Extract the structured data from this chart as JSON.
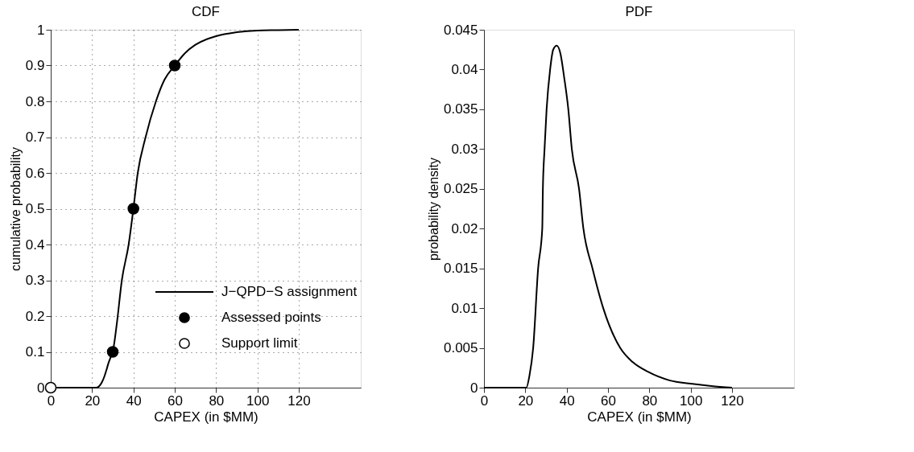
{
  "chart_data": [
    {
      "type": "line",
      "title": "CDF",
      "xlabel": "CAPEX (in $MM)",
      "ylabel": "cumulative probability",
      "xlim": [
        0,
        150
      ],
      "xticks": [
        0,
        20,
        40,
        60,
        80,
        100,
        120
      ],
      "ylim": [
        0,
        1
      ],
      "yticks": [
        0,
        0.1,
        0.2,
        0.3,
        0.4,
        0.5,
        0.6,
        0.7,
        0.8,
        0.9,
        1
      ],
      "grid": true,
      "legend": "bottom right",
      "series": [
        {
          "name": "J−QPD−S assignment",
          "color": "#000000",
          "line_style": "solid",
          "x": [
            0,
            20,
            22,
            23,
            24,
            25,
            26,
            27,
            28,
            29,
            30,
            32,
            34.4,
            37.7,
            40,
            42.1,
            45.9,
            50.9,
            55,
            60,
            65,
            70,
            80,
            90,
            100,
            110,
            120
          ],
          "values": [
            0,
            0,
            0,
            0.002,
            0.008,
            0.018,
            0.032,
            0.05,
            0.07,
            0.085,
            0.1,
            0.18,
            0.3,
            0.4,
            0.5,
            0.6,
            0.7,
            0.8,
            0.86,
            0.9,
            0.935,
            0.958,
            0.982,
            0.993,
            0.998,
            0.999,
            1
          ]
        },
        {
          "name": "Assessed points",
          "type": "scatter",
          "color": "#000000",
          "marker": "circle",
          "x": [
            30,
            40,
            60
          ],
          "values": [
            0.1,
            0.5,
            0.9
          ]
        },
        {
          "name": "Support limit",
          "type": "scatter",
          "color": "#ffffff",
          "marker": "circle",
          "x": [
            0
          ],
          "values": [
            0
          ]
        }
      ]
    },
    {
      "type": "line",
      "title": "PDF",
      "xlabel": "CAPEX (in $MM)",
      "ylabel": "probability density",
      "xlim": [
        0,
        150
      ],
      "xticks": [
        0,
        20,
        40,
        60,
        80,
        100,
        120
      ],
      "ylim": [
        0,
        0.045
      ],
      "yticks": [
        0,
        0.005,
        0.01,
        0.015,
        0.02,
        0.025,
        0.03,
        0.035,
        0.04,
        0.045
      ],
      "grid": false,
      "legend": false,
      "series": [
        {
          "color": "#000000",
          "line_style": "solid",
          "x": [
            0,
            20.5,
            22,
            23.8,
            26.2,
            28.2,
            28.5,
            29.3,
            30.3,
            32,
            33.5,
            35.2,
            37,
            38.8,
            40.8,
            42.5,
            46,
            48.1,
            52.5,
            57.7,
            65.9,
            72,
            79.3,
            90,
            100,
            110,
            120
          ],
          "values": [
            0,
            0,
            0.0015,
            0.005,
            0.015,
            0.02,
            0.025,
            0.03,
            0.035,
            0.04,
            0.0425,
            0.043,
            0.042,
            0.039,
            0.035,
            0.03,
            0.025,
            0.02,
            0.015,
            0.01,
            0.005,
            0.0032,
            0.002,
            0.0009,
            0.0005,
            0.0002,
            0
          ]
        }
      ]
    }
  ]
}
